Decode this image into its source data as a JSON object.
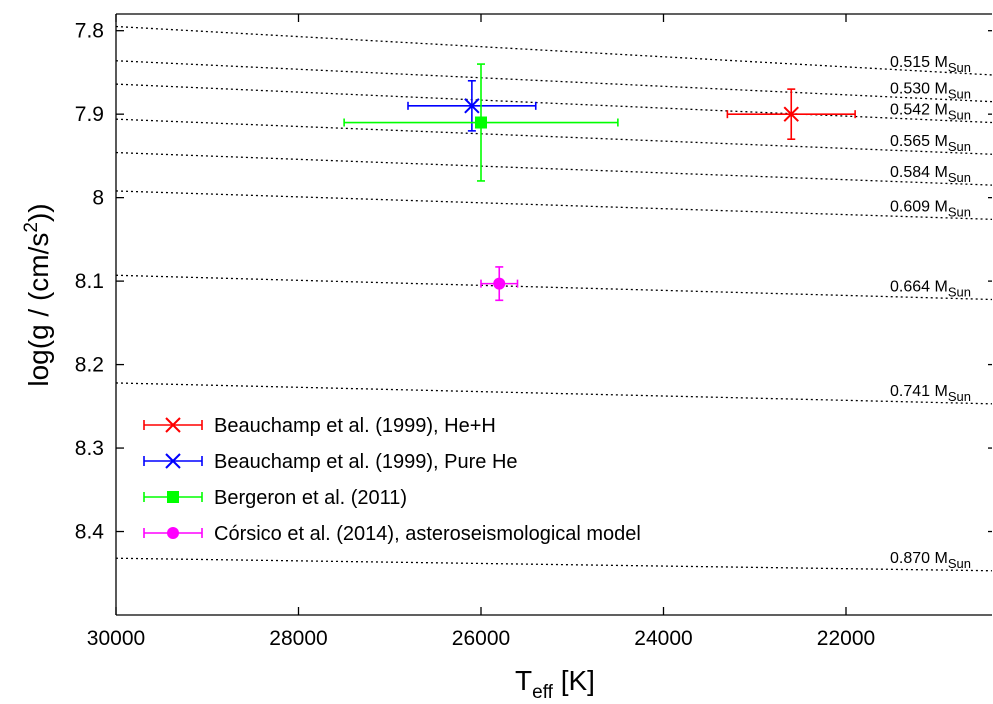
{
  "chart_data": {
    "type": "scatter",
    "x_axis": {
      "label_base": "T",
      "label_sub": "eff",
      "label_rest": " [K]",
      "range": [
        30000,
        20400
      ],
      "reversed": true,
      "ticks": [
        30000,
        28000,
        26000,
        24000,
        22000
      ],
      "tick_labels": [
        "30000",
        "28000",
        "26000",
        "24000",
        "22000"
      ]
    },
    "y_axis": {
      "label_base": "log(g / (cm/s",
      "label_sup": "2",
      "label_end": "))",
      "range": [
        7.78,
        8.5
      ],
      "reversed": true,
      "ticks": [
        7.8,
        7.9,
        8.0,
        8.1,
        8.2,
        8.3,
        8.4
      ],
      "tick_labels": [
        "7.8",
        "7.9",
        "8",
        "8.1",
        "8.2",
        "8.3",
        "8.4"
      ]
    },
    "mass_tracks": [
      {
        "label": "0.515 M",
        "sub": "Sun",
        "y_left": 7.795,
        "y_right": 7.853
      },
      {
        "label": "0.530 M",
        "sub": "Sun",
        "y_left": 7.836,
        "y_right": 7.885
      },
      {
        "label": "0.542 M",
        "sub": "Sun",
        "y_left": 7.864,
        "y_right": 7.91
      },
      {
        "label": "0.565 M",
        "sub": "Sun",
        "y_left": 7.906,
        "y_right": 7.948
      },
      {
        "label": "0.584 M",
        "sub": "Sun",
        "y_left": 7.946,
        "y_right": 7.985
      },
      {
        "label": "0.609 M",
        "sub": "Sun",
        "y_left": 7.992,
        "y_right": 8.026
      },
      {
        "label": "0.664 M",
        "sub": "Sun",
        "y_left": 8.093,
        "y_right": 8.122
      },
      {
        "label": "0.741 M",
        "sub": "Sun",
        "y_left": 8.222,
        "y_right": 8.247
      },
      {
        "label": "0.870 M",
        "sub": "Sun",
        "y_left": 8.432,
        "y_right": 8.447
      }
    ],
    "series": [
      {
        "name": "Beauchamp et al. (1999), He+H",
        "color": "#ff0000",
        "marker": "x",
        "x": 22600,
        "y": 7.9,
        "xerr": [
          21900,
          23300
        ],
        "yerr": [
          7.87,
          7.93
        ]
      },
      {
        "name": "Beauchamp et al. (1999), Pure He",
        "color": "#0000ff",
        "marker": "x",
        "x": 26100,
        "y": 7.89,
        "xerr": [
          25400,
          26800
        ],
        "yerr": [
          7.86,
          7.92
        ]
      },
      {
        "name": "Bergeron et al. (2011)",
        "color": "#00ff00",
        "marker": "square",
        "x": 26000,
        "y": 7.91,
        "xerr": [
          24500,
          27500
        ],
        "yerr": [
          7.84,
          7.98
        ]
      },
      {
        "name": "Córsico et al. (2014), asteroseismological model",
        "color": "#ff00ff",
        "marker": "circle",
        "x": 25800,
        "y": 8.103,
        "xerr": [
          25600,
          26000
        ],
        "yerr": [
          8.083,
          8.123
        ]
      }
    ],
    "legend": {
      "position": "bottom-left"
    },
    "grid": false
  }
}
